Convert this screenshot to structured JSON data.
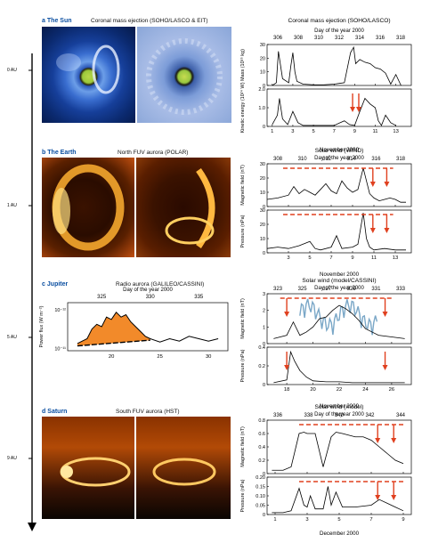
{
  "colors": {
    "accent_blue": "#0a4ea0",
    "arrow_red": "#e0401f",
    "fill_orange": "#f28a2a",
    "wind_blue": "#7aa7c7"
  },
  "distance_axis": {
    "labels": [
      "0 AU",
      "1 AU",
      "5 AU",
      "9 AU"
    ]
  },
  "panels": [
    {
      "letter": "a",
      "name": "The Sun",
      "image_caption": "Coronal mass ejection (SOHO/LASCO & EIT)"
    },
    {
      "letter": "b",
      "name": "The Earth",
      "image_caption": "North FUV aurora (POLAR)"
    },
    {
      "letter": "c",
      "name": "Jupiter",
      "image_caption": "Radio aurora (GALILEO/CASSINI)"
    },
    {
      "letter": "d",
      "name": "Saturn",
      "image_caption": "South FUV aurora (HST)"
    }
  ],
  "chart_data": [
    {
      "id": "a",
      "type": "line",
      "title": "Coronal mass ejection (SOHO/LASCO)",
      "top_axis_label": "Day of the year 2000",
      "top_ticks": [
        "306",
        "308",
        "310",
        "312",
        "314",
        "316",
        "318"
      ],
      "xlabel": "November 2000",
      "x_ticks": [
        "1",
        "3",
        "5",
        "7",
        "9",
        "11",
        "13"
      ],
      "subplots": [
        {
          "ylabel": "Mass (10¹⁶ kg)",
          "ylim": [
            0,
            30
          ],
          "y_ticks": [
            "0",
            "10",
            "20",
            "30"
          ],
          "x": [
            1,
            1.4,
            1.6,
            2,
            2.6,
            2.8,
            3,
            3.2,
            3.4,
            4,
            5,
            6,
            7,
            8,
            8.6,
            8.9,
            9.1,
            9.5,
            10,
            10.5,
            11,
            11.5,
            12,
            12.5,
            13,
            13.5
          ],
          "y": [
            0,
            2,
            25,
            5,
            2,
            14,
            24,
            10,
            3,
            1,
            0.5,
            0.5,
            1,
            2,
            24,
            28,
            16,
            19,
            17,
            16,
            13,
            12,
            9,
            1,
            8,
            0
          ]
        },
        {
          "ylabel": "Kinetic energy (10²⁴ W)",
          "ylim": [
            0,
            2
          ],
          "y_ticks": [
            "0",
            "1.0",
            "2.0"
          ],
          "x": [
            1,
            1.5,
            1.7,
            2,
            2.5,
            3,
            3.5,
            4,
            5,
            6,
            7,
            8,
            8.5,
            9,
            9.5,
            10,
            10.5,
            11,
            11.3,
            11.6,
            12,
            12.5,
            13
          ],
          "y": [
            0.1,
            0.6,
            1.5,
            0.4,
            0.1,
            0.8,
            0.2,
            0.05,
            0.05,
            0.05,
            0.05,
            0.3,
            0.1,
            0.05,
            0.8,
            1.5,
            1.2,
            1.0,
            0.3,
            0.05,
            0.6,
            0.2,
            0.05
          ]
        }
      ]
    },
    {
      "id": "b",
      "type": "line",
      "title": "Solar wind (WIND)",
      "top_axis_label": "Day of the year 2000",
      "top_ticks": [
        "308",
        "310",
        "312",
        "314",
        "316",
        "318"
      ],
      "xlabel": "November 2000",
      "x_ticks": [
        "3",
        "5",
        "7",
        "9",
        "11",
        "13"
      ],
      "subplots": [
        {
          "ylabel": "Magnetic field (nT)",
          "ylim": [
            0,
            30
          ],
          "y_ticks": [
            "0",
            "10",
            "20",
            "30"
          ],
          "x": [
            1,
            2,
            3,
            3.5,
            4,
            4.5,
            5,
            5.5,
            6,
            6.5,
            7,
            7.5,
            8,
            8.5,
            9,
            9.5,
            10,
            10.3,
            10.6,
            11,
            11.5,
            12,
            12.5,
            13,
            13.5,
            14
          ],
          "y": [
            5,
            6,
            8,
            14,
            9,
            12,
            10,
            8,
            12,
            16,
            11,
            9,
            18,
            13,
            10,
            12,
            27,
            18,
            9,
            6,
            4,
            5,
            6,
            5,
            3,
            3
          ]
        },
        {
          "ylabel": "Pressure (nPa)",
          "ylim": [
            0,
            30
          ],
          "y_ticks": [
            "0",
            "10",
            "20",
            "30"
          ],
          "x": [
            1,
            2,
            3,
            4,
            5,
            5.5,
            6,
            7,
            7.5,
            8,
            9,
            9.5,
            10,
            10.3,
            10.6,
            11,
            12,
            13,
            14
          ],
          "y": [
            3,
            4,
            3,
            5,
            8,
            3,
            2,
            4,
            12,
            3,
            4,
            6,
            28,
            10,
            4,
            2,
            3,
            2,
            2
          ]
        }
      ]
    },
    {
      "id": "c",
      "type": "area",
      "top_axis_label": "Day of the year 2000",
      "top_ticks": [
        "325",
        "330",
        "335"
      ],
      "xlabel": "November 2000",
      "x_ticks": [
        "20",
        "25",
        "30"
      ],
      "ylabel": "Power flux (W m⁻²)",
      "y_ticks": [
        "10⁻¹¹",
        "10⁻¹²"
      ],
      "x": [
        17.5,
        18,
        18.5,
        19,
        19.5,
        20,
        20.5,
        21,
        21.5,
        22,
        22.5,
        23,
        23.5,
        24,
        24.5,
        25,
        26,
        27,
        28,
        29,
        30,
        31,
        32
      ],
      "y": [
        0.15,
        0.2,
        0.25,
        0.45,
        0.55,
        0.5,
        0.7,
        0.65,
        0.8,
        0.7,
        0.75,
        0.6,
        0.5,
        0.4,
        0.3,
        0.25,
        0.18,
        0.25,
        0.2,
        0.3,
        0.25,
        0.2,
        0.25
      ]
    },
    {
      "id": "c2",
      "type": "line",
      "title": "Solar wind (model/CASSINI)",
      "top_axis_label": "Day of the year 2000",
      "top_ticks": [
        "323",
        "325",
        "327",
        "329",
        "331",
        "333"
      ],
      "xlabel": "November 2000",
      "x_ticks": [
        "18",
        "20",
        "22",
        "24",
        "26"
      ],
      "subplots": [
        {
          "ylabel": "Magnetic field (nT)",
          "ylim": [
            0,
            3
          ],
          "y_ticks": [
            "0",
            "1",
            "2",
            "3"
          ],
          "x": [
            17,
            18,
            18.5,
            19,
            19.5,
            20,
            20.5,
            21,
            21.5,
            22,
            22.5,
            23,
            23.5,
            24,
            24.5,
            25,
            26,
            27
          ],
          "y": [
            0.3,
            0.5,
            1.3,
            0.5,
            0.7,
            1.0,
            1.5,
            1.6,
            2.0,
            2.3,
            2.1,
            1.8,
            1.4,
            0.9,
            0.7,
            0.5,
            0.4,
            0.3
          ]
        },
        {
          "ylabel": "Pressure (nPa)",
          "ylim": [
            0,
            0.4
          ],
          "y_ticks": [
            "0",
            "0.2",
            "0.4"
          ],
          "x": [
            17,
            18,
            18.3,
            18.6,
            19,
            19.5,
            20,
            21,
            22,
            23,
            24,
            25,
            26,
            27
          ],
          "y": [
            0.02,
            0.05,
            0.35,
            0.25,
            0.15,
            0.08,
            0.04,
            0.03,
            0.03,
            0.02,
            0.02,
            0.02,
            0.02,
            0.02
          ]
        }
      ]
    },
    {
      "id": "d",
      "type": "line",
      "title": "Solar wind (model)",
      "top_axis_label": "Day of the year 2000",
      "top_ticks": [
        "336",
        "338",
        "340",
        "342",
        "344"
      ],
      "xlabel": "December 2000",
      "x_ticks": [
        "1",
        "3",
        "5",
        "7",
        "9"
      ],
      "subplots": [
        {
          "ylabel": "Magnetic field (nT)",
          "ylim": [
            0,
            0.8
          ],
          "y_ticks": [
            "0",
            "0.2",
            "0.4",
            "0.6",
            "0.8"
          ],
          "x": [
            0.8,
            1.5,
            2,
            2.5,
            2.8,
            3.0,
            3.5,
            4,
            4.5,
            4.8,
            5.2,
            6,
            6.5,
            7,
            7.5,
            8,
            8.5,
            9
          ],
          "y": [
            0.05,
            0.05,
            0.1,
            0.6,
            0.62,
            0.6,
            0.6,
            0.1,
            0.55,
            0.62,
            0.6,
            0.55,
            0.55,
            0.5,
            0.4,
            0.3,
            0.2,
            0.15
          ]
        },
        {
          "ylabel": "Pressure (nPa)",
          "ylim": [
            0,
            0.2
          ],
          "y_ticks": [
            "0",
            "0.05",
            "0.10",
            "0.15",
            "0.20"
          ],
          "x": [
            0.8,
            1.5,
            2,
            2.5,
            2.8,
            3.0,
            3.2,
            3.5,
            4,
            4.3,
            4.5,
            4.8,
            5.2,
            6,
            7,
            7.5,
            8,
            8.5,
            9
          ],
          "y": [
            0.01,
            0.01,
            0.02,
            0.14,
            0.05,
            0.04,
            0.1,
            0.03,
            0.03,
            0.15,
            0.05,
            0.12,
            0.04,
            0.04,
            0.05,
            0.08,
            0.06,
            0.04,
            0.02
          ]
        }
      ]
    }
  ]
}
